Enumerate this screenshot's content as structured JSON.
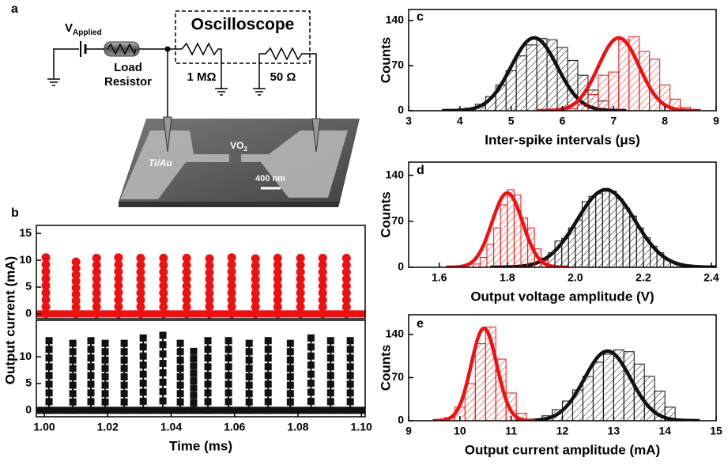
{
  "diagram": {
    "panel_label": "a",
    "source": {
      "symbol": "V",
      "subscript": "Applied"
    },
    "load_resistor": [
      "Load",
      "Resistor"
    ],
    "oscilloscope": "Oscilloscope",
    "r1": "1 MΩ",
    "r2": "50 Ω",
    "sem": {
      "material": "VO",
      "material_sub": "2",
      "electrode": "Ti/Au",
      "scale_bar": "400 nm"
    }
  },
  "chart_data": [
    {
      "type": "spike",
      "panel_label": "b",
      "ylabel": "Output current (mA)",
      "xlim": [
        0.9975,
        1.1012
      ],
      "ylim": [
        -0.9,
        16.5
      ],
      "yticks": [
        0,
        5,
        10,
        15
      ],
      "series": [
        {
          "color": "#ee1111",
          "marker": "circle",
          "x": [
            1.0005,
            1.01,
            1.0165,
            1.0234,
            1.0304,
            1.0376,
            1.0449,
            1.0521,
            1.0591,
            1.0666,
            1.0736,
            1.0808,
            1.0878,
            1.0953
          ],
          "values": [
            10.5,
            9.7,
            10.4,
            10.5,
            10.4,
            10.4,
            10.4,
            10.3,
            10.5,
            10.3,
            10.4,
            10.4,
            10.4,
            10.4
          ]
        }
      ]
    },
    {
      "type": "spike",
      "xlabel": "Time (ms)",
      "xlim": [
        0.9975,
        1.1012
      ],
      "ylim": [
        -1.2,
        16.8
      ],
      "yticks": [
        0,
        5,
        10
      ],
      "xticks": [
        {
          "value": 1,
          "label": "1.00"
        },
        1.02,
        1.04,
        1.06,
        1.08,
        {
          "value": 1.1,
          "label": "1.10"
        }
      ],
      "series": [
        {
          "color": "#111111",
          "marker": "square",
          "x": [
            1.0015,
            1.009,
            1.0147,
            1.0192,
            1.0252,
            1.0312,
            1.0374,
            1.0429,
            1.0471,
            1.0516,
            1.0581,
            1.0646,
            1.0706,
            1.0776,
            1.0841,
            1.0903,
            1.0965
          ],
          "values": [
            13,
            12.5,
            13,
            12.5,
            12.5,
            13.5,
            14,
            12.5,
            11,
            13,
            13,
            12.5,
            13,
            12.5,
            13.5,
            13,
            13
          ]
        }
      ]
    },
    {
      "type": "histogram",
      "panel_label": "c",
      "xlabel": "Inter-spike intervals (μs)",
      "ylabel": "Counts",
      "xlim": [
        3,
        9
      ],
      "ylim": [
        0,
        157
      ],
      "xticks": [
        3,
        4,
        5,
        6,
        7,
        8,
        9
      ],
      "yticks": [
        0,
        70,
        140
      ],
      "series": [
        {
          "color": "#111111",
          "bins": [
            3.9,
            4.1,
            4.3,
            4.5,
            4.7,
            4.9,
            5.1,
            5.3,
            5.5,
            5.7,
            5.9,
            6.1,
            6.3,
            6.5,
            6.7,
            6.9
          ],
          "values": [
            1,
            4,
            10,
            22,
            40,
            62,
            85,
            102,
            112,
            110,
            98,
            78,
            55,
            32,
            15
          ],
          "fit": {
            "center": 5.45,
            "width": 0.45,
            "height": 113
          }
        },
        {
          "color": "#ee1111",
          "bins": [
            6.1,
            6.3,
            6.5,
            6.7,
            6.9,
            7.1,
            7.3,
            7.5,
            7.7,
            7.9,
            8.1,
            8.3,
            8.5
          ],
          "values": [
            3,
            10,
            25,
            55,
            60,
            110,
            115,
            92,
            80,
            40,
            18,
            5
          ],
          "fit": {
            "center": 7.1,
            "width": 0.4,
            "height": 113
          }
        }
      ]
    },
    {
      "type": "histogram",
      "panel_label": "d",
      "xlabel": "Output voltage amplitude (V)",
      "ylabel": "Counts",
      "xlim": [
        1.51,
        2.414
      ],
      "ylim": [
        0,
        160
      ],
      "xticks": [
        1.6,
        1.8,
        {
          "value": 2,
          "label": "2.0"
        },
        2.2,
        2.4
      ],
      "yticks": [
        0,
        70,
        140
      ],
      "series": [
        {
          "color": "#111111",
          "bins": [
            1.84,
            1.86,
            1.88,
            1.9,
            1.92,
            1.94,
            1.96,
            1.98,
            2.0,
            2.02,
            2.04,
            2.06,
            2.08,
            2.1,
            2.12,
            2.14,
            2.16,
            2.18,
            2.2,
            2.22,
            2.24,
            2.26,
            2.28,
            2.3,
            2.32
          ],
          "values": [
            2,
            4,
            8,
            14,
            22,
            40,
            44,
            60,
            72,
            100,
            108,
            112,
            120,
            116,
            104,
            90,
            78,
            60,
            45,
            32,
            22,
            12,
            7,
            3
          ],
          "fit": {
            "center": 2.09,
            "width": 0.085,
            "height": 118
          }
        },
        {
          "color": "#ee1111",
          "bins": [
            1.7,
            1.72,
            1.74,
            1.76,
            1.78,
            1.8,
            1.82,
            1.84,
            1.86,
            1.88,
            1.9,
            1.92
          ],
          "values": [
            5,
            15,
            35,
            60,
            95,
            118,
            110,
            75,
            60,
            28,
            10
          ],
          "fit": {
            "center": 1.8,
            "width": 0.045,
            "height": 113
          }
        }
      ]
    },
    {
      "type": "histogram",
      "panel_label": "e",
      "xlabel": "Output current amplitude (mA)",
      "ylabel": "Counts",
      "xlim": [
        9,
        15
      ],
      "ylim": [
        0,
        172
      ],
      "xticks": [
        9,
        10,
        11,
        12,
        13,
        14,
        15
      ],
      "yticks": [
        0,
        70,
        140
      ],
      "series": [
        {
          "color": "#111111",
          "bins": [
            11.6,
            11.8,
            12.0,
            12.2,
            12.4,
            12.6,
            12.8,
            13.0,
            13.2,
            13.4,
            13.6,
            13.8,
            14.0,
            14.2
          ],
          "values": [
            8,
            18,
            32,
            50,
            72,
            95,
            108,
            115,
            112,
            92,
            72,
            48,
            22
          ],
          "fit": {
            "center": 12.88,
            "width": 0.45,
            "height": 113
          }
        },
        {
          "color": "#ee1111",
          "bins": [
            9.7,
            9.9,
            10.1,
            10.3,
            10.5,
            10.7,
            10.9,
            11.1,
            11.3
          ],
          "values": [
            5,
            22,
            60,
            125,
            152,
            100,
            45,
            12
          ],
          "fit": {
            "center": 10.47,
            "width": 0.25,
            "height": 150
          }
        }
      ]
    }
  ]
}
